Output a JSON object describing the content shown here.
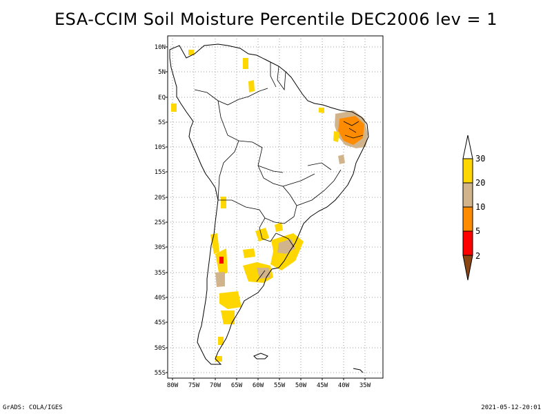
{
  "title": "ESA-CCIM Soil Moisture Percentile DEC2006 lev = 1",
  "map": {
    "lat_labels": [
      "10N",
      "5N",
      "EQ",
      "5S",
      "10S",
      "15S",
      "20S",
      "25S",
      "30S",
      "35S",
      "40S",
      "45S",
      "50S",
      "55S"
    ],
    "lon_labels": [
      "80W",
      "75W",
      "70W",
      "65W",
      "60W",
      "55W",
      "50W",
      "45W",
      "40W",
      "35W"
    ],
    "grid": "dotted"
  },
  "legend": {
    "labels": [
      "2",
      "5",
      "10",
      "20",
      "30"
    ],
    "colors": {
      "below_2": "#8b4513",
      "2_5": "#ff0000",
      "5_10": "#ff8c00",
      "10_20": "#d2b48c",
      "20_30": "#ffd700",
      "above_30": "#ffffff"
    }
  },
  "footer": {
    "left": "GrADS: COLA/IGES",
    "right": "2021-05-12-20:01"
  }
}
